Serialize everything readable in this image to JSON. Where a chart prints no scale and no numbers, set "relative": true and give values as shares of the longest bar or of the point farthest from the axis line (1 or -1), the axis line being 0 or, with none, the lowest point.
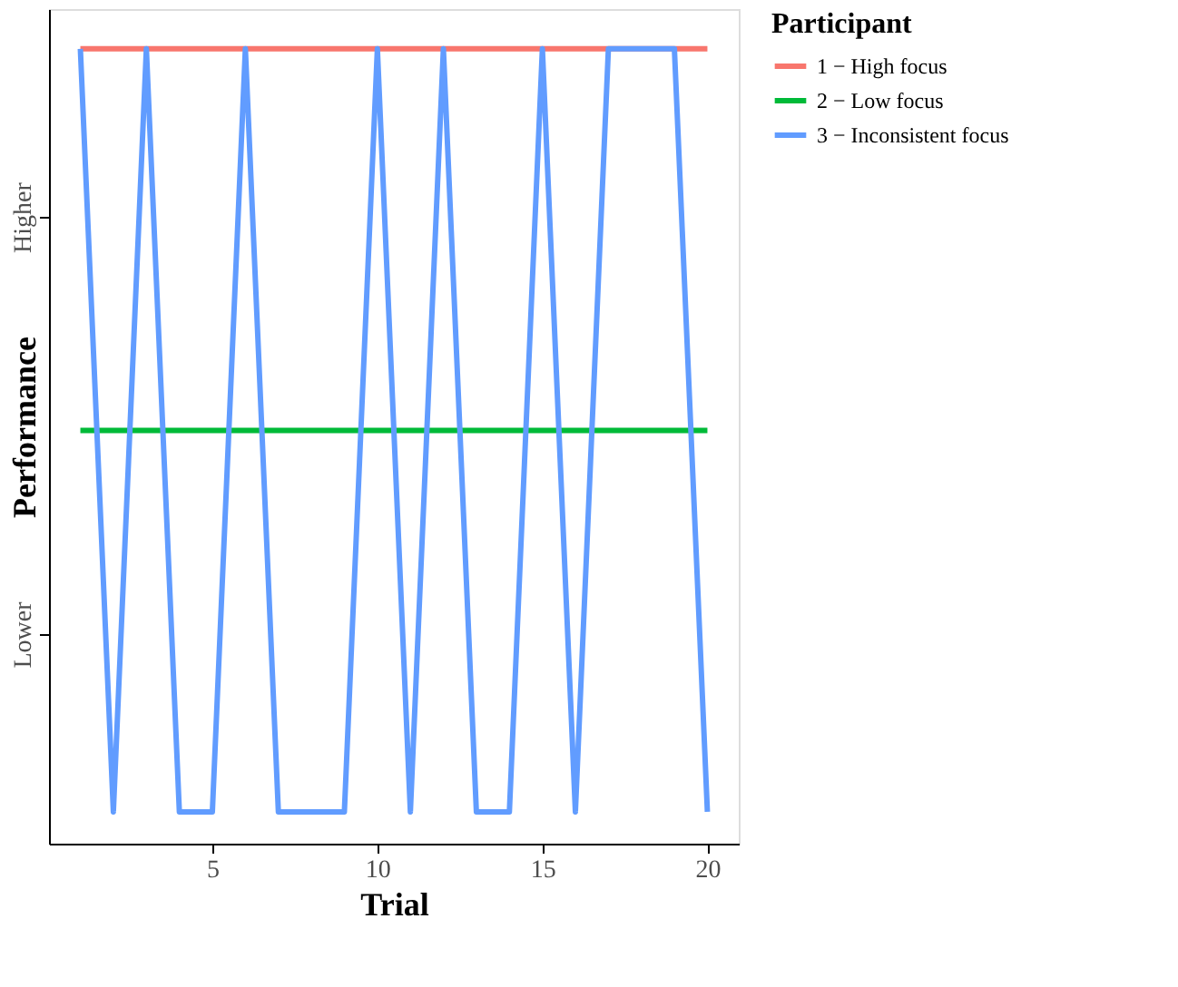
{
  "chart_data": {
    "type": "line",
    "relative": true,
    "xlabel": "Trial",
    "ylabel": "Performance",
    "legend_title": "Participant",
    "x": [
      1,
      2,
      3,
      4,
      5,
      6,
      7,
      8,
      9,
      10,
      11,
      12,
      13,
      14,
      15,
      16,
      17,
      18,
      19,
      20
    ],
    "series": [
      {
        "name": "1 − High focus",
        "color": "#f8766d",
        "values": [
          1,
          1,
          1,
          1,
          1,
          1,
          1,
          1,
          1,
          1,
          1,
          1,
          1,
          1,
          1,
          1,
          1,
          1,
          1,
          1
        ]
      },
      {
        "name": "2 − Low focus",
        "color": "#00ba38",
        "values": [
          0.52,
          0.52,
          0.52,
          0.52,
          0.52,
          0.52,
          0.52,
          0.52,
          0.52,
          0.52,
          0.52,
          0.52,
          0.52,
          0.52,
          0.52,
          0.52,
          0.52,
          0.52,
          0.52,
          0.52
        ]
      },
      {
        "name": "3 − Inconsistent focus",
        "color": "#619cff",
        "values": [
          1,
          0.04,
          1,
          0.04,
          0.04,
          1,
          0.04,
          0.04,
          0.04,
          1,
          0.04,
          1,
          0.04,
          0.04,
          1,
          0.04,
          1,
          1,
          1,
          0.04
        ]
      }
    ],
    "annotations": [
      "Lower",
      "Higher"
    ],
    "xlim": [
      0.05,
      20.95
    ],
    "xticks": [
      5,
      10,
      15,
      20
    ],
    "grid": false,
    "legend": "right",
    "marker": "none",
    "line_style": "solid"
  }
}
